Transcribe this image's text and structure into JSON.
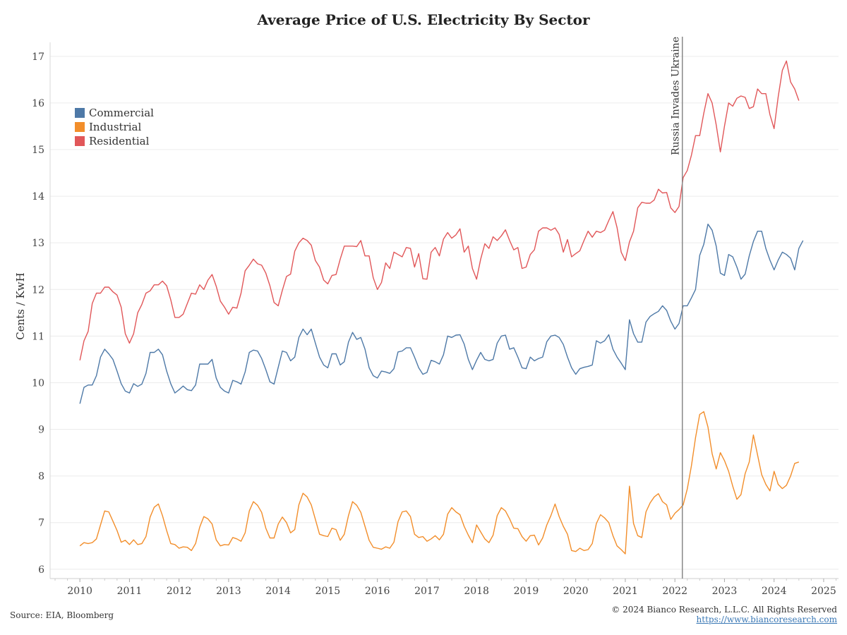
{
  "chart_data": {
    "type": "line",
    "title": "Average Price of U.S. Electricity By Sector",
    "ylabel": "Cents / KwH",
    "xlabel": "",
    "ylim": [
      5.8,
      17.3
    ],
    "xlim": [
      2009.4,
      2025.3
    ],
    "yticks": [
      6,
      7,
      8,
      9,
      10,
      11,
      12,
      13,
      14,
      15,
      16,
      17
    ],
    "xticks": [
      2010,
      2011,
      2012,
      2013,
      2014,
      2015,
      2016,
      2017,
      2018,
      2019,
      2020,
      2021,
      2022,
      2023,
      2024,
      2025
    ],
    "legend_position": "top-left",
    "grid": true,
    "annotation": {
      "label": "Russia Invades Ukraine",
      "x": 2022.15
    },
    "x_start": "2010-01",
    "x_step": "monthly",
    "series": [
      {
        "name": "Commercial",
        "color": "#4e79a7",
        "values": [
          9.55,
          9.9,
          9.95,
          9.95,
          10.15,
          10.55,
          10.72,
          10.62,
          10.5,
          10.25,
          9.98,
          9.82,
          9.78,
          9.98,
          9.92,
          9.97,
          10.2,
          10.65,
          10.65,
          10.72,
          10.6,
          10.25,
          9.98,
          9.78,
          9.85,
          9.93,
          9.85,
          9.83,
          9.95,
          10.4,
          10.4,
          10.4,
          10.5,
          10.1,
          9.9,
          9.82,
          9.78,
          10.05,
          10.02,
          9.97,
          10.23,
          10.65,
          10.7,
          10.68,
          10.52,
          10.28,
          10.02,
          9.97,
          10.33,
          10.68,
          10.65,
          10.47,
          10.55,
          10.97,
          11.15,
          11.03,
          11.15,
          10.85,
          10.55,
          10.38,
          10.32,
          10.62,
          10.62,
          10.38,
          10.45,
          10.87,
          11.08,
          10.93,
          10.97,
          10.72,
          10.32,
          10.15,
          10.1,
          10.25,
          10.23,
          10.2,
          10.3,
          10.66,
          10.68,
          10.75,
          10.75,
          10.55,
          10.32,
          10.18,
          10.22,
          10.48,
          10.45,
          10.4,
          10.6,
          11.0,
          10.97,
          11.02,
          11.03,
          10.83,
          10.5,
          10.28,
          10.48,
          10.65,
          10.5,
          10.47,
          10.5,
          10.85,
          11.0,
          11.02,
          10.72,
          10.75,
          10.55,
          10.32,
          10.3,
          10.55,
          10.47,
          10.52,
          10.55,
          10.88,
          11.0,
          11.02,
          10.97,
          10.82,
          10.55,
          10.32,
          10.18,
          10.3,
          10.33,
          10.35,
          10.38,
          10.9,
          10.85,
          10.9,
          11.03,
          10.72,
          10.55,
          10.42,
          10.28,
          11.35,
          11.05,
          10.87,
          10.87,
          11.3,
          11.42,
          11.48,
          11.53,
          11.65,
          11.55,
          11.32,
          11.15,
          11.27,
          11.65,
          11.65,
          11.82,
          12.0,
          12.73,
          12.97,
          13.4,
          13.27,
          12.93,
          12.35,
          12.3,
          12.75,
          12.7,
          12.48,
          12.22,
          12.33,
          12.72,
          13.03,
          13.25,
          13.25,
          12.88,
          12.63,
          12.42,
          12.63,
          12.8,
          12.75,
          12.67,
          12.42,
          12.88,
          13.05
        ]
      },
      {
        "name": "Industrial",
        "color": "#f28e2b",
        "values": [
          6.5,
          6.57,
          6.55,
          6.57,
          6.65,
          6.95,
          7.25,
          7.23,
          7.03,
          6.83,
          6.58,
          6.62,
          6.53,
          6.63,
          6.53,
          6.55,
          6.7,
          7.12,
          7.33,
          7.4,
          7.15,
          6.83,
          6.55,
          6.53,
          6.45,
          6.48,
          6.47,
          6.4,
          6.55,
          6.9,
          7.13,
          7.08,
          6.97,
          6.63,
          6.5,
          6.53,
          6.52,
          6.68,
          6.65,
          6.6,
          6.78,
          7.25,
          7.45,
          7.37,
          7.22,
          6.88,
          6.67,
          6.67,
          6.97,
          7.12,
          7.0,
          6.78,
          6.85,
          7.38,
          7.63,
          7.55,
          7.38,
          7.07,
          6.75,
          6.72,
          6.7,
          6.88,
          6.85,
          6.62,
          6.75,
          7.15,
          7.45,
          7.37,
          7.22,
          6.92,
          6.62,
          6.47,
          6.45,
          6.43,
          6.48,
          6.45,
          6.58,
          7.02,
          7.23,
          7.25,
          7.13,
          6.75,
          6.68,
          6.7,
          6.6,
          6.65,
          6.72,
          6.63,
          6.75,
          7.18,
          7.32,
          7.23,
          7.17,
          6.92,
          6.73,
          6.57,
          6.95,
          6.8,
          6.65,
          6.57,
          6.73,
          7.15,
          7.32,
          7.25,
          7.08,
          6.88,
          6.87,
          6.7,
          6.6,
          6.72,
          6.73,
          6.52,
          6.67,
          6.95,
          7.15,
          7.4,
          7.13,
          6.92,
          6.75,
          6.4,
          6.38,
          6.45,
          6.4,
          6.42,
          6.55,
          6.98,
          7.17,
          7.1,
          7.0,
          6.72,
          6.5,
          6.42,
          6.33,
          7.78,
          6.98,
          6.72,
          6.68,
          7.23,
          7.42,
          7.55,
          7.62,
          7.45,
          7.38,
          7.07,
          7.2,
          7.28,
          7.38,
          7.72,
          8.22,
          8.82,
          9.32,
          9.38,
          9.05,
          8.48,
          8.15,
          8.5,
          8.33,
          8.1,
          7.78,
          7.5,
          7.6,
          8.05,
          8.3,
          8.88,
          8.45,
          8.03,
          7.82,
          7.68,
          8.1,
          7.82,
          7.73,
          7.8,
          8.0,
          8.27,
          8.3
        ]
      },
      {
        "name": "Residential",
        "color": "#e15759",
        "values": [
          10.48,
          10.9,
          11.1,
          11.7,
          11.92,
          11.92,
          12.05,
          12.05,
          11.95,
          11.88,
          11.62,
          11.05,
          10.85,
          11.05,
          11.5,
          11.68,
          11.92,
          11.97,
          12.1,
          12.1,
          12.18,
          12.08,
          11.78,
          11.4,
          11.4,
          11.47,
          11.7,
          11.92,
          11.9,
          12.1,
          12.0,
          12.2,
          12.32,
          12.07,
          11.75,
          11.62,
          11.47,
          11.62,
          11.6,
          11.92,
          12.4,
          12.52,
          12.65,
          12.55,
          12.52,
          12.35,
          12.08,
          11.72,
          11.65,
          11.98,
          12.28,
          12.33,
          12.82,
          13.0,
          13.1,
          13.05,
          12.95,
          12.62,
          12.48,
          12.2,
          12.12,
          12.3,
          12.32,
          12.65,
          12.93,
          12.93,
          12.93,
          12.92,
          13.05,
          12.72,
          12.72,
          12.25,
          12.0,
          12.15,
          12.57,
          12.45,
          12.8,
          12.75,
          12.7,
          12.9,
          12.88,
          12.48,
          12.77,
          12.23,
          12.22,
          12.8,
          12.9,
          12.72,
          13.08,
          13.22,
          13.1,
          13.17,
          13.3,
          12.8,
          12.93,
          12.45,
          12.22,
          12.65,
          12.98,
          12.88,
          13.13,
          13.05,
          13.15,
          13.28,
          13.05,
          12.85,
          12.9,
          12.45,
          12.48,
          12.75,
          12.85,
          13.25,
          13.32,
          13.32,
          13.27,
          13.32,
          13.18,
          12.8,
          13.07,
          12.7,
          12.77,
          12.83,
          13.05,
          13.25,
          13.12,
          13.25,
          13.22,
          13.27,
          13.48,
          13.67,
          13.33,
          12.8,
          12.62,
          13.02,
          13.25,
          13.75,
          13.87,
          13.85,
          13.85,
          13.92,
          14.15,
          14.07,
          14.08,
          13.75,
          13.65,
          13.78,
          14.4,
          14.55,
          14.88,
          15.3,
          15.3,
          15.78,
          16.2,
          16.0,
          15.53,
          14.95,
          15.5,
          16.0,
          15.93,
          16.1,
          16.15,
          16.12,
          15.88,
          15.92,
          16.3,
          16.2,
          16.2,
          15.75,
          15.45,
          16.13,
          16.7,
          16.9,
          16.45,
          16.3,
          16.05
        ]
      }
    ]
  },
  "footer": {
    "source": "Source: EIA, Bloomberg",
    "copyright": "© 2024 Bianco Research, L.L.C. All Rights Reserved",
    "url": "https://www.biancoresearch.com"
  }
}
